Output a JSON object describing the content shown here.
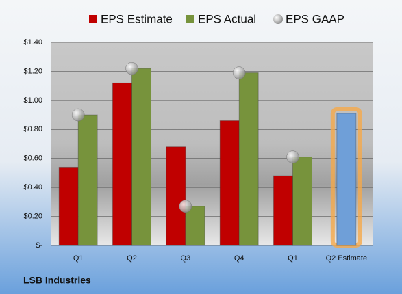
{
  "chart_data": {
    "type": "bar",
    "footer": "LSB Industries",
    "categories": [
      "Q1",
      "Q2",
      "Q3",
      "Q4",
      "Q1",
      "Q2 Estimate"
    ],
    "series": [
      {
        "name": "EPS Estimate",
        "color": "#c00000",
        "values": [
          0.54,
          1.12,
          0.68,
          0.86,
          0.48,
          0.91
        ],
        "point_colors": [
          "#c00000",
          "#c00000",
          "#c00000",
          "#c00000",
          "#c00000",
          "#6f9fd8"
        ]
      },
      {
        "name": "EPS Actual",
        "color": "#77933c",
        "values": [
          0.9,
          1.22,
          0.27,
          1.19,
          0.61,
          null
        ]
      },
      {
        "name": "EPS GAAP",
        "color": "#a6a6a6",
        "type": "scatter",
        "values": [
          0.9,
          1.22,
          0.27,
          1.19,
          0.61,
          null
        ]
      }
    ],
    "ylim": [
      0,
      1.4
    ],
    "yticks": [
      {
        "value": 0,
        "label": "$-"
      },
      {
        "value": 0.2,
        "label": "$0.20"
      },
      {
        "value": 0.4,
        "label": "$0.40"
      },
      {
        "value": 0.6,
        "label": "$0.60"
      },
      {
        "value": 0.8,
        "label": "$0.80"
      },
      {
        "value": 1.0,
        "label": "$1.00"
      },
      {
        "value": 1.2,
        "label": "$1.20"
      },
      {
        "value": 1.4,
        "label": "$1.40"
      }
    ],
    "grid": true
  }
}
